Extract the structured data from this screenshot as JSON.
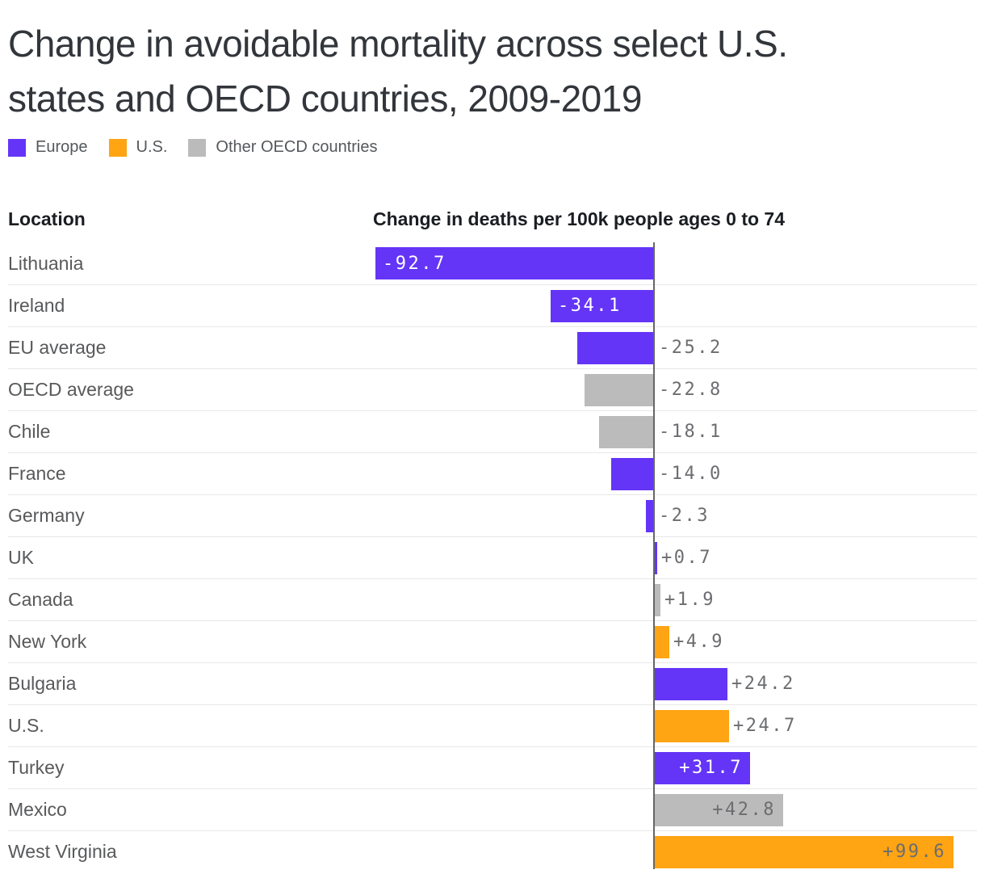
{
  "title_lines": [
    "Change in avoidable mortality across select U.S.",
    "states and OECD countries, 2009-2019"
  ],
  "legend": [
    {
      "label": "Europe",
      "series": "europe"
    },
    {
      "label": "U.S.",
      "series": "us"
    },
    {
      "label": "Other OECD countries",
      "series": "other"
    }
  ],
  "columns": {
    "location": "Location",
    "value": "Change in deaths per 100k people ages 0 to 74"
  },
  "colors": {
    "europe": "#6435F7",
    "us": "#FFA413",
    "other": "#BBBBBB",
    "zero_line": "#666666",
    "separator": "#E8E8E8",
    "value_label_gray": "#6B6D70",
    "value_label_light": "#FFFFFF"
  },
  "chart_data": {
    "type": "bar",
    "orientation": "horizontal",
    "title": "Change in avoidable mortality across select U.S. states and OECD countries, 2009-2019",
    "xlabel": "Change in deaths per 100k people ages 0 to 74",
    "xlim": [
      -100,
      108
    ],
    "grid": false,
    "legend_position": "top",
    "series_names": [
      "Europe",
      "U.S.",
      "Other OECD countries"
    ],
    "rows": [
      {
        "location": "Lithuania",
        "value": -92.7,
        "display": "-92.7",
        "series": "europe"
      },
      {
        "location": "Ireland",
        "value": -34.1,
        "display": "-34.1",
        "series": "europe"
      },
      {
        "location": "EU average",
        "value": -25.2,
        "display": "-25.2",
        "series": "europe"
      },
      {
        "location": "OECD average",
        "value": -22.8,
        "display": "-22.8",
        "series": "other"
      },
      {
        "location": "Chile",
        "value": -18.1,
        "display": "-18.1",
        "series": "other"
      },
      {
        "location": "France",
        "value": -14.0,
        "display": "-14.0",
        "series": "europe"
      },
      {
        "location": "Germany",
        "value": -2.3,
        "display": "-2.3",
        "series": "europe"
      },
      {
        "location": "UK",
        "value": 0.7,
        "display": "+0.7",
        "series": "europe"
      },
      {
        "location": "Canada",
        "value": 1.9,
        "display": "+1.9",
        "series": "other"
      },
      {
        "location": "New York",
        "value": 4.9,
        "display": "+4.9",
        "series": "us"
      },
      {
        "location": "Bulgaria",
        "value": 24.2,
        "display": "+24.2",
        "series": "europe"
      },
      {
        "location": "U.S.",
        "value": 24.7,
        "display": "+24.7",
        "series": "us"
      },
      {
        "location": "Turkey",
        "value": 31.7,
        "display": "+31.7",
        "series": "europe"
      },
      {
        "location": "Mexico",
        "value": 42.8,
        "display": "+42.8",
        "series": "other"
      },
      {
        "location": "West Virginia",
        "value": 99.6,
        "display": "+99.6",
        "series": "us"
      }
    ]
  }
}
